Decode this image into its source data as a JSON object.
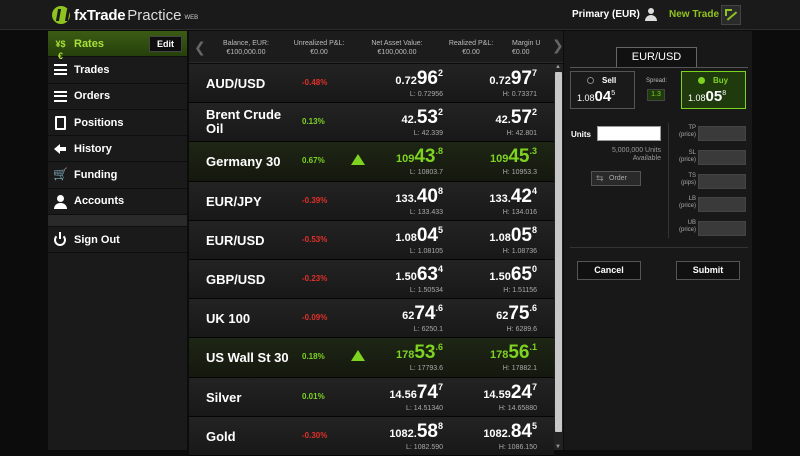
{
  "topbar": {
    "logo_main": "fxTrade",
    "logo_sub": "Practice",
    "logo_web": "WEB",
    "account": "Primary (EUR)",
    "new_trade": "New Trade"
  },
  "sidebar": {
    "edit_label": "Edit",
    "items": [
      {
        "label": "Rates",
        "icon": "currency-exchange-icon",
        "glyph": "¥$€"
      },
      {
        "label": "Trades",
        "icon": "list-icon"
      },
      {
        "label": "Orders",
        "icon": "orders-icon"
      },
      {
        "label": "Positions",
        "icon": "document-icon"
      },
      {
        "label": "History",
        "icon": "back-arrow-icon"
      },
      {
        "label": "Funding",
        "icon": "cart-icon",
        "glyph": "🛒"
      },
      {
        "label": "Accounts",
        "icon": "user-icon"
      }
    ],
    "signout": "Sign Out"
  },
  "summary": {
    "items": [
      {
        "label": "Balance, EUR:",
        "value": "€100,000.00"
      },
      {
        "label": "Unrealized P&L:",
        "value": "€0.00"
      },
      {
        "label": "Net Asset Value:",
        "value": "€100,000.00"
      },
      {
        "label": "Realized P&L:",
        "value": "€0.00"
      },
      {
        "label": "Margin U",
        "value": "€0.00"
      }
    ]
  },
  "rates": [
    {
      "name": "AUD/USD",
      "change": "-0.48%",
      "up": false,
      "green": false,
      "trend": false,
      "bid": {
        "pre": "0.72",
        "big": "96",
        "sup": "2"
      },
      "ask": {
        "pre": "0.72",
        "big": "97",
        "sup": "7"
      },
      "low": "L: 0.72956",
      "high": "H: 0.73371"
    },
    {
      "name": "Brent Crude Oil",
      "line1": "Brent Crude",
      "line2": "Oil",
      "change": "0.13%",
      "up": true,
      "green": false,
      "trend": false,
      "bid": {
        "pre": "42.",
        "big": "53",
        "sup": "2"
      },
      "ask": {
        "pre": "42.",
        "big": "57",
        "sup": "2"
      },
      "low": "L: 42.339",
      "high": "H: 42.801"
    },
    {
      "name": "Germany 30",
      "change": "0.67%",
      "up": true,
      "green": true,
      "trend": true,
      "bid": {
        "pre": "109",
        "big": "43",
        "sup": ".8"
      },
      "ask": {
        "pre": "109",
        "big": "45",
        "sup": ".3"
      },
      "low": "L: 10803.7",
      "high": "H: 10953.3"
    },
    {
      "name": "EUR/JPY",
      "change": "-0.39%",
      "up": false,
      "green": false,
      "trend": false,
      "bid": {
        "pre": "133.",
        "big": "40",
        "sup": "8"
      },
      "ask": {
        "pre": "133.",
        "big": "42",
        "sup": "4"
      },
      "low": "L: 133.433",
      "high": "H: 134.016"
    },
    {
      "name": "EUR/USD",
      "change": "-0.53%",
      "up": false,
      "green": false,
      "trend": false,
      "bid": {
        "pre": "1.08",
        "big": "04",
        "sup": "5"
      },
      "ask": {
        "pre": "1.08",
        "big": "05",
        "sup": "8"
      },
      "low": "L: 1.08105",
      "high": "H: 1.08736"
    },
    {
      "name": "GBP/USD",
      "change": "-0.23%",
      "up": false,
      "green": false,
      "trend": false,
      "bid": {
        "pre": "1.50",
        "big": "63",
        "sup": "4"
      },
      "ask": {
        "pre": "1.50",
        "big": "65",
        "sup": "0"
      },
      "low": "L: 1.50534",
      "high": "H: 1.51156"
    },
    {
      "name": "UK 100",
      "change": "-0.09%",
      "up": false,
      "green": false,
      "trend": false,
      "bid": {
        "pre": "62",
        "big": "74",
        "sup": ".6"
      },
      "ask": {
        "pre": "62",
        "big": "75",
        "sup": ".6"
      },
      "low": "L: 6250.1",
      "high": "H: 6289.6"
    },
    {
      "name": "US Wall St 30",
      "change": "0.18%",
      "up": true,
      "green": true,
      "trend": true,
      "bid": {
        "pre": "178",
        "big": "53",
        "sup": ".6"
      },
      "ask": {
        "pre": "178",
        "big": "56",
        "sup": ".1"
      },
      "low": "L: 17793.6",
      "high": "H: 17882.1"
    },
    {
      "name": "Silver",
      "change": "0.01%",
      "up": true,
      "green": false,
      "trend": false,
      "bid": {
        "pre": "14.56",
        "big": "74",
        "sup": "7"
      },
      "ask": {
        "pre": "14.59",
        "big": "24",
        "sup": "7"
      },
      "low": "L: 14.51340",
      "high": "H: 14.65880"
    },
    {
      "name": "Gold",
      "change": "-0.30%",
      "up": false,
      "green": false,
      "trend": false,
      "bid": {
        "pre": "1082.",
        "big": "58",
        "sup": "8"
      },
      "ask": {
        "pre": "1082.",
        "big": "84",
        "sup": "5"
      },
      "low": "L: 1082.590",
      "high": "H: 1086.150"
    }
  ],
  "ticket": {
    "pair": "EUR/USD",
    "sell_label": "Sell",
    "buy_label": "Buy",
    "sell": {
      "pre": "1.08",
      "big": "04",
      "sup": "5"
    },
    "buy": {
      "pre": "1.08",
      "big": "05",
      "sup": "8"
    },
    "spread_label": "Spread:",
    "spread_value": "1.3",
    "units_label": "Units",
    "units_value": "",
    "available_line1": "5,000,000 Units",
    "available_line2": "Available",
    "order_label": "Order",
    "options": [
      {
        "label": "TP",
        "sub": "(price)"
      },
      {
        "label": "SL",
        "sub": "(price)"
      },
      {
        "label": "TS",
        "sub": "(pips)"
      },
      {
        "label": "LB",
        "sub": "(price)"
      },
      {
        "label": "UB",
        "sub": "(price)"
      }
    ],
    "cancel_label": "Cancel",
    "submit_label": "Submit"
  },
  "colors": {
    "accent_green": "#7ed321",
    "negative_red": "#e0302a",
    "brand_green": "#8fc31f"
  }
}
